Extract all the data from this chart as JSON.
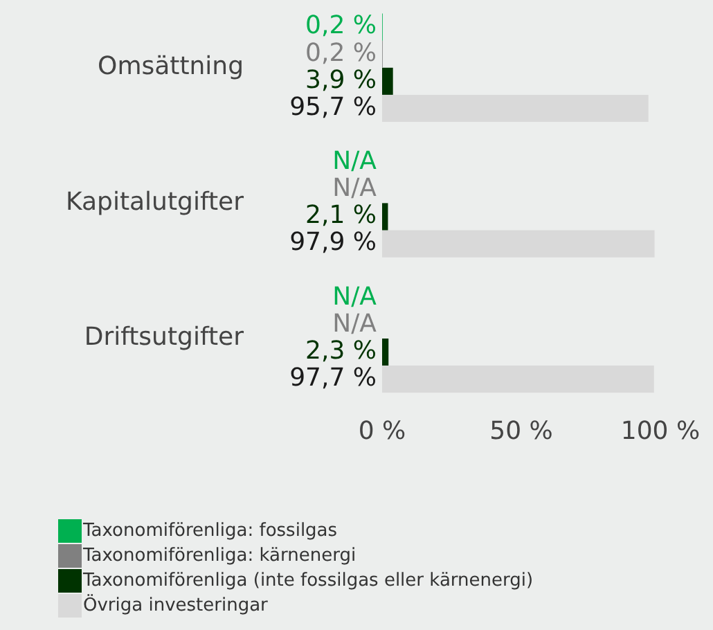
{
  "chart_data": {
    "type": "bar",
    "orientation": "horizontal",
    "categories": [
      "Omsättning",
      "Kapitalutgifter",
      "Driftsutgifter"
    ],
    "series": [
      {
        "name": "Taxonomiförenliga: fossilgas",
        "color": "#00b050",
        "values": [
          0.2,
          null,
          null
        ],
        "value_labels": [
          "0,2 %",
          "N/A",
          "N/A"
        ]
      },
      {
        "name": "Taxonomiförenliga: kärnenergi",
        "color": "#808080",
        "values": [
          0.2,
          null,
          null
        ],
        "value_labels": [
          "0,2 %",
          "N/A",
          "N/A"
        ]
      },
      {
        "name": "Taxonomiförenliga (inte fossilgas eller kärnenergi)",
        "color": "#003300",
        "values": [
          3.9,
          2.1,
          2.3
        ],
        "value_labels": [
          "3,9 %",
          "2,1 %",
          "2,3 %"
        ]
      },
      {
        "name": "Övriga investeringar",
        "color": "#d9d9d9",
        "values": [
          95.7,
          97.9,
          97.7
        ],
        "value_labels": [
          "95,7 %",
          "97,9 %",
          "97,7 %"
        ]
      }
    ],
    "xlim": [
      0,
      100
    ],
    "xticks": [
      {
        "value": 0,
        "label": "0 %"
      },
      {
        "value": 50,
        "label": "50 %"
      },
      {
        "value": 100,
        "label": "100 %"
      }
    ],
    "grid": false,
    "legend": "bottom"
  }
}
